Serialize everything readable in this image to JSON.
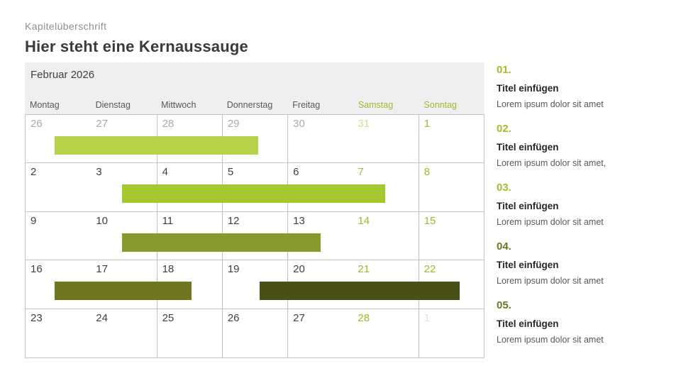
{
  "slide": {
    "kicker": "Kapitelüberschrift",
    "title": "Hier steht eine Kernaussauge"
  },
  "calendar": {
    "month_title": "Februar 2026",
    "weekdays": [
      {
        "label": "Montag",
        "weekend": false
      },
      {
        "label": "Dienstag",
        "weekend": false
      },
      {
        "label": "Mittwoch",
        "weekend": false
      },
      {
        "label": "Donnerstag",
        "weekend": false
      },
      {
        "label": "Freitag",
        "weekend": false
      },
      {
        "label": "Samstag",
        "weekend": true
      },
      {
        "label": "Sonntag",
        "weekend": true
      }
    ],
    "weeks": [
      [
        {
          "day": "26",
          "type": "prev"
        },
        {
          "day": "27",
          "type": "prev"
        },
        {
          "day": "28",
          "type": "prev"
        },
        {
          "day": "29",
          "type": "prev"
        },
        {
          "day": "30",
          "type": "prev"
        },
        {
          "day": "31",
          "type": "prev_weekend"
        },
        {
          "day": "1",
          "type": "weekend"
        }
      ],
      [
        {
          "day": "2",
          "type": "cur"
        },
        {
          "day": "3",
          "type": "cur"
        },
        {
          "day": "4",
          "type": "cur"
        },
        {
          "day": "5",
          "type": "cur"
        },
        {
          "day": "6",
          "type": "cur"
        },
        {
          "day": "7",
          "type": "weekend"
        },
        {
          "day": "8",
          "type": "weekend"
        }
      ],
      [
        {
          "day": "9",
          "type": "cur"
        },
        {
          "day": "10",
          "type": "cur"
        },
        {
          "day": "11",
          "type": "cur"
        },
        {
          "day": "12",
          "type": "cur"
        },
        {
          "day": "13",
          "type": "cur"
        },
        {
          "day": "14",
          "type": "weekend"
        },
        {
          "day": "15",
          "type": "weekend"
        }
      ],
      [
        {
          "day": "16",
          "type": "cur"
        },
        {
          "day": "17",
          "type": "cur"
        },
        {
          "day": "18",
          "type": "cur"
        },
        {
          "day": "19",
          "type": "cur"
        },
        {
          "day": "20",
          "type": "cur"
        },
        {
          "day": "21",
          "type": "weekend"
        },
        {
          "day": "22",
          "type": "weekend"
        }
      ],
      [
        {
          "day": "23",
          "type": "cur"
        },
        {
          "day": "24",
          "type": "cur"
        },
        {
          "day": "25",
          "type": "cur"
        },
        {
          "day": "26",
          "type": "cur"
        },
        {
          "day": "27",
          "type": "cur"
        },
        {
          "day": "28",
          "type": "weekend"
        },
        {
          "day": "1",
          "type": "next"
        }
      ]
    ],
    "bars": [
      {
        "week": 0,
        "start_day": 0.46,
        "end_day": 3.57,
        "color": "#b5d24a"
      },
      {
        "week": 1,
        "start_day": 1.48,
        "end_day": 5.51,
        "color": "#a3c92f"
      },
      {
        "week": 2,
        "start_day": 1.48,
        "end_day": 4.52,
        "color": "#879a2c"
      },
      {
        "week": 3,
        "start_day": 0.46,
        "end_day": 2.55,
        "color": "#70751f"
      },
      {
        "week": 3,
        "start_day": 3.59,
        "end_day": 6.64,
        "color": "#4a4f17"
      }
    ],
    "colors": {
      "header_bg": "#efefef",
      "grid_line": "#c3c3c3",
      "weekday_label": "#595959",
      "weekday_weekend": "#9cba2d",
      "date_cur": "#3f3f3f",
      "date_prev": "#a9a9a9",
      "date_prev_weekend": "#d2e094",
      "date_weekend": "#9cba2d",
      "date_next": "#dfe8ba"
    }
  },
  "sidebar": {
    "items": [
      {
        "number": "01.",
        "number_color": "#9fbe2d",
        "title": "Titel einfügen",
        "text": "Lorem ipsum dolor sit amet"
      },
      {
        "number": "02.",
        "number_color": "#9fbe2d",
        "title": "Titel einfügen",
        "text": "Lorem ipsum dolor sit amet,"
      },
      {
        "number": "03.",
        "number_color": "#9fbe2d",
        "title": "Titel einfügen",
        "text": "Lorem ipsum dolor sit amet"
      },
      {
        "number": "04.",
        "number_color": "#6f7520",
        "title": "Titel einfügen",
        "text": "Lorem ipsum dolor sit amet"
      },
      {
        "number": "05.",
        "number_color": "#6f7520",
        "title": "Titel einfügen",
        "text": "Lorem ipsum dolor sit amet"
      }
    ]
  }
}
